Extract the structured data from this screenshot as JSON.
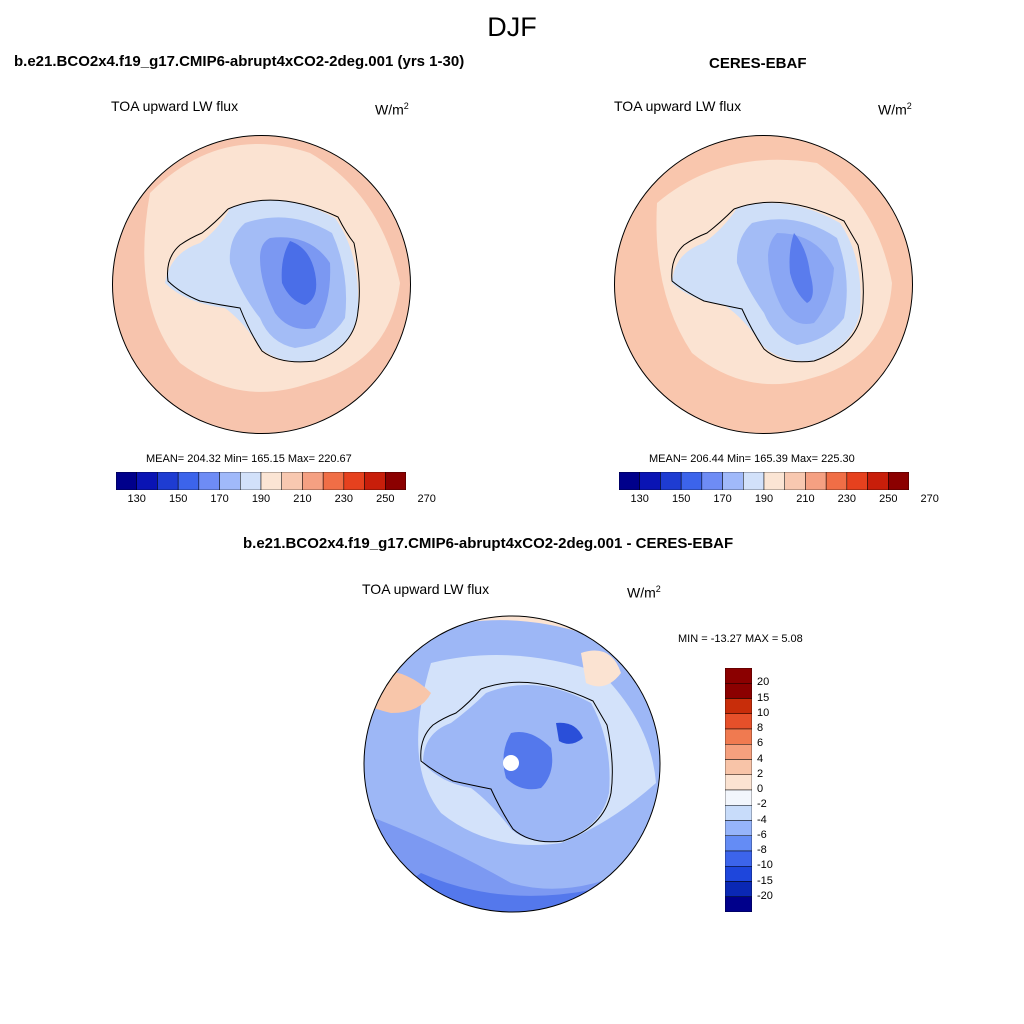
{
  "figure_title": "DJF",
  "panels": [
    {
      "case": "b.e21.BCO2x4.f19_g17.CMIP6-abrupt4xCO2-2deg.001 (yrs 1-30)",
      "variable": "TOA upward LW flux",
      "units_base": "W/m",
      "units_exp": "2",
      "stats": "MEAN= 204.32  Min= 165.15  Max= 220.67"
    },
    {
      "case": "CERES-EBAF",
      "variable": "TOA upward LW flux",
      "units_base": "W/m",
      "units_exp": "2",
      "stats": "MEAN= 206.44  Min= 165.39  Max= 225.30"
    },
    {
      "case": "b.e21.BCO2x4.f19_g17.CMIP6-abrupt4xCO2-2deg.001 - CERES-EBAF",
      "variable": "TOA upward LW flux",
      "units_base": "W/m",
      "units_exp": "2",
      "stats": "MIN = -13.27 MAX =   5.08"
    }
  ],
  "colorbar_abs": {
    "colors": [
      "#00008b",
      "#0a14b4",
      "#1e3cd2",
      "#3c64eb",
      "#6e8cf5",
      "#a0b9fa",
      "#d2e1fa",
      "#fbe5d4",
      "#f8c8b0",
      "#f5a082",
      "#f06e46",
      "#e6411e",
      "#c81e0a",
      "#8b0000"
    ],
    "tick_labels": [
      "130",
      "150",
      "170",
      "190",
      "210",
      "230",
      "250",
      "270"
    ]
  },
  "colorbar_diff": {
    "colors": [
      "#00008b",
      "#0a28b4",
      "#1e46dc",
      "#3c64eb",
      "#648cf5",
      "#96b4fa",
      "#c8dcfa",
      "#f2f6fc",
      "#fbe3d2",
      "#f8c4a8",
      "#f5a07e",
      "#f07a50",
      "#e6502a",
      "#c82d0a",
      "#8b0000"
    ],
    "tick_labels": [
      "20",
      "15",
      "10",
      "8",
      "6",
      "4",
      "2",
      "0",
      "-2",
      "-4",
      "-6",
      "-8",
      "-10",
      "-15",
      "-20"
    ]
  },
  "chart_data": [
    {
      "type": "heatmap",
      "title": "b.e21.BCO2x4.f19_g17.CMIP6-abrupt4xCO2-2deg.001 (yrs 1-30)",
      "variable": "TOA upward LW flux",
      "units": "W/m2",
      "projection": "south polar stereographic",
      "mean": 204.32,
      "min": 165.15,
      "max": 220.67,
      "levels": [
        130,
        140,
        150,
        160,
        170,
        180,
        190,
        200,
        210,
        220,
        230,
        240,
        250,
        260,
        270
      ]
    },
    {
      "type": "heatmap",
      "title": "CERES-EBAF",
      "variable": "TOA upward LW flux",
      "units": "W/m2",
      "projection": "south polar stereographic",
      "mean": 206.44,
      "min": 165.39,
      "max": 225.3,
      "levels": [
        130,
        140,
        150,
        160,
        170,
        180,
        190,
        200,
        210,
        220,
        230,
        240,
        250,
        260,
        270
      ]
    },
    {
      "type": "heatmap",
      "title": "b.e21.BCO2x4.f19_g17.CMIP6-abrupt4xCO2-2deg.001 - CERES-EBAF",
      "variable": "TOA upward LW flux",
      "units": "W/m2",
      "projection": "south polar stereographic",
      "min": -13.27,
      "max": 5.08,
      "levels": [
        -20,
        -15,
        -10,
        -8,
        -6,
        -4,
        -2,
        0,
        2,
        4,
        6,
        8,
        10,
        15,
        20
      ]
    }
  ]
}
